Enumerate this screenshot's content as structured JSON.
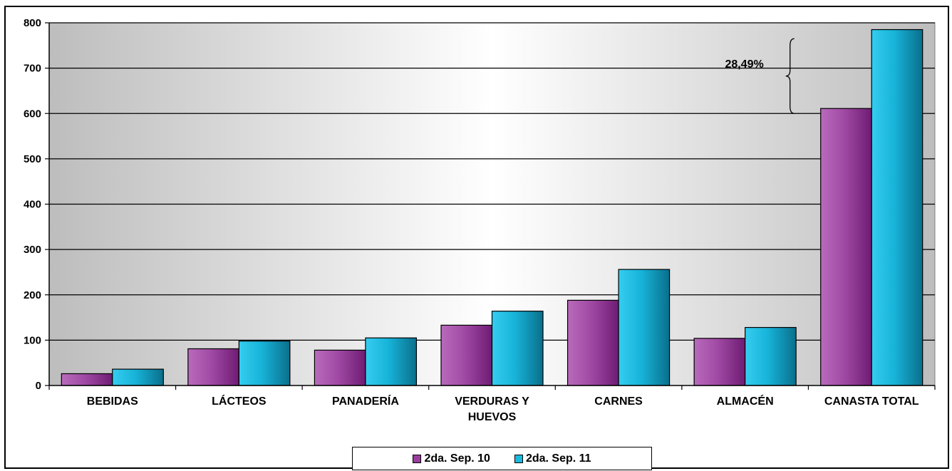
{
  "chart_data": {
    "type": "bar",
    "title": "",
    "xlabel": "",
    "ylabel": "",
    "ylim": [
      0,
      800
    ],
    "yticks": [
      0,
      100,
      200,
      300,
      400,
      500,
      600,
      700,
      800
    ],
    "grid": true,
    "legend_position": "bottom",
    "categories": [
      [
        "BEBIDAS"
      ],
      [
        "LÁCTEOS"
      ],
      [
        "PANADERÍA"
      ],
      [
        "VERDURAS Y",
        "HUEVOS"
      ],
      [
        "CARNES"
      ],
      [
        "ALMACÉN"
      ],
      [
        "CANASTA TOTAL"
      ]
    ],
    "series": [
      {
        "name": "2da. Sep. 10",
        "color": "#9B3D9F",
        "values": [
          26,
          81,
          78,
          133,
          188,
          104,
          611
        ]
      },
      {
        "name": "2da. Sep. 11",
        "color": "#1BB9DD",
        "values": [
          36,
          98,
          105,
          164,
          256,
          128,
          785
        ]
      }
    ],
    "annotations": [
      {
        "text": "28,49%",
        "category_index": 6,
        "from_value": 600,
        "to_value": 765
      }
    ]
  }
}
